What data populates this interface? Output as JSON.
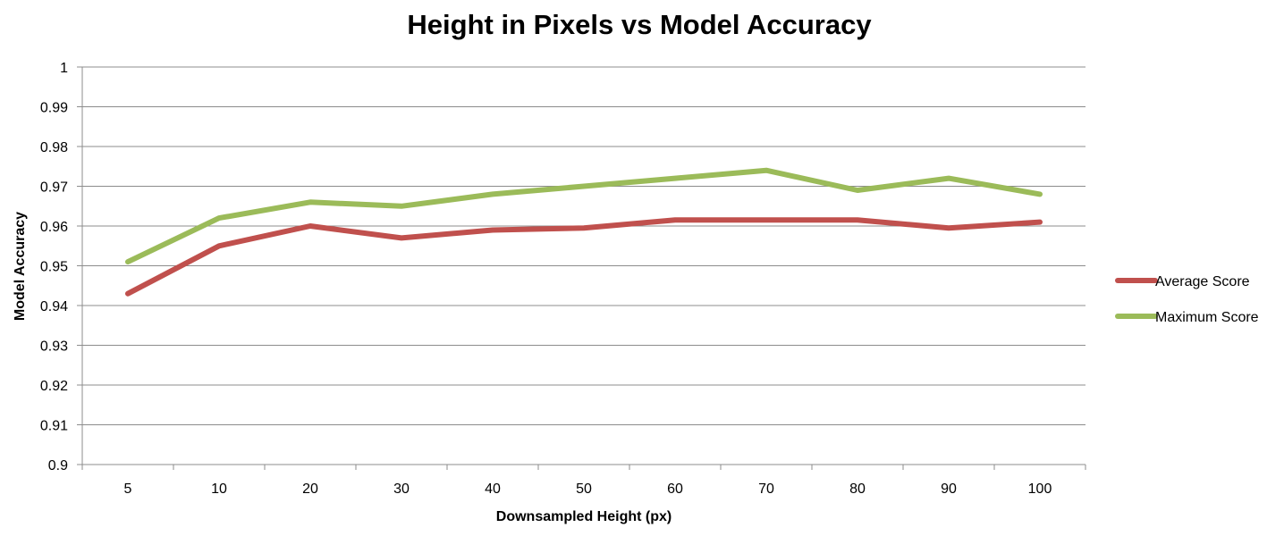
{
  "chart_data": {
    "type": "line",
    "title": "Height in Pixels vs Model Accuracy",
    "xlabel": "Downsampled Height (px)",
    "ylabel": "Model Accuracy",
    "categories": [
      "5",
      "10",
      "20",
      "30",
      "40",
      "50",
      "60",
      "70",
      "80",
      "90",
      "100"
    ],
    "ylim": [
      0.9,
      1
    ],
    "yticks": [
      "0.9",
      "0.91",
      "0.92",
      "0.93",
      "0.94",
      "0.95",
      "0.96",
      "0.97",
      "0.98",
      "0.99",
      "1"
    ],
    "grid": true,
    "legend_position": "right",
    "series": [
      {
        "name": "Average Score",
        "color": "#c0504d",
        "values": [
          0.943,
          0.955,
          0.96,
          0.957,
          0.959,
          0.9595,
          0.9615,
          0.9615,
          0.9615,
          0.9595,
          0.961
        ]
      },
      {
        "name": "Maximum Score",
        "color": "#9bbb59",
        "values": [
          0.951,
          0.962,
          0.966,
          0.965,
          0.968,
          0.97,
          0.972,
          0.974,
          0.969,
          0.972,
          0.968
        ]
      }
    ]
  }
}
